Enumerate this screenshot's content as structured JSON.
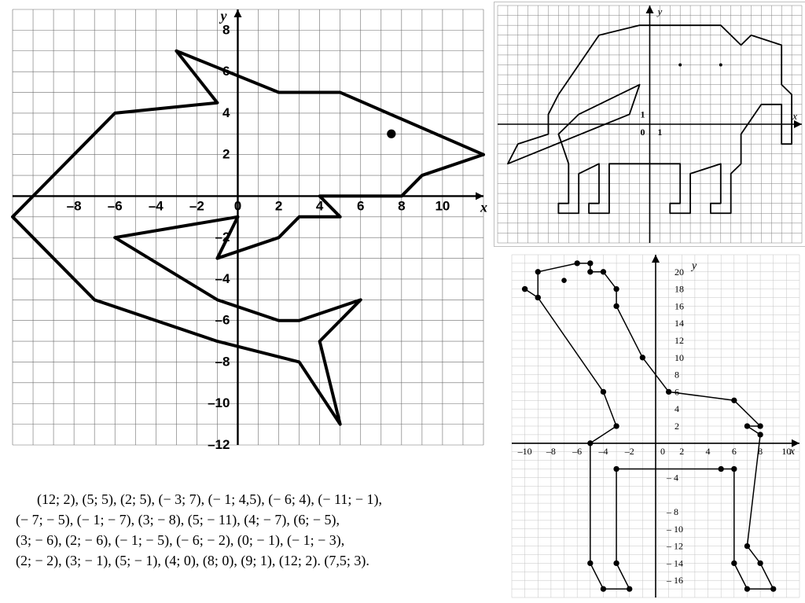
{
  "shark_chart": {
    "type": "coordinate-drawing",
    "background_color": "#ffffff",
    "grid_color": "#6b6b6b",
    "grid_width": 0.6,
    "axis_color": "#000000",
    "axis_width": 2.4,
    "shape_color": "#000000",
    "shape_width": 4,
    "label_color": "#000000",
    "label_fontsize": 17,
    "axis_label_fontsize": 18,
    "x_label": "x",
    "y_label": "y",
    "xlim": [
      -11,
      12
    ],
    "ylim": [
      -12,
      9
    ],
    "xticks": [
      -8,
      -6,
      -4,
      -2,
      0,
      2,
      4,
      6,
      8,
      10
    ],
    "yticks": [
      -12,
      -10,
      -8,
      -6,
      -4,
      -2,
      2,
      4,
      6,
      8
    ],
    "outline": [
      [
        12,
        2
      ],
      [
        5,
        5
      ],
      [
        2,
        5
      ],
      [
        -3,
        7
      ],
      [
        -1,
        4.5
      ],
      [
        -6,
        4
      ],
      [
        -11,
        -1
      ],
      [
        -7,
        -5
      ],
      [
        -1,
        -7
      ],
      [
        3,
        -8
      ],
      [
        5,
        -11
      ],
      [
        4,
        -7
      ],
      [
        6,
        -5
      ],
      [
        3,
        -6
      ],
      [
        2,
        -6
      ],
      [
        -1,
        -5
      ],
      [
        -6,
        -2
      ],
      [
        0,
        -1
      ],
      [
        -1,
        -3
      ],
      [
        2,
        -2
      ],
      [
        3,
        -1
      ],
      [
        5,
        -1
      ],
      [
        4,
        0
      ],
      [
        8,
        0
      ],
      [
        9,
        1
      ],
      [
        12,
        2
      ]
    ],
    "eye": [
      7.5,
      3
    ],
    "eye_radius": 0.18
  },
  "elephant_chart": {
    "type": "coordinate-drawing",
    "background_color": "#ffffff",
    "grid_color": "#808080",
    "grid_width": 0.5,
    "axis_color": "#000000",
    "axis_width": 1.6,
    "shape_color": "#000000",
    "shape_width": 1.8,
    "label_color": "#000000",
    "label_fontsize": 12,
    "axis_label_fontsize": 13,
    "x_label": "x",
    "y_label": "y",
    "xlim": [
      -15,
      15
    ],
    "ylim": [
      -12,
      12
    ],
    "xticks_labeled": [
      1
    ],
    "yticks_labeled": [
      1
    ],
    "origin_label": "0",
    "outline": [
      [
        -1,
        4
      ],
      [
        -2,
        1
      ],
      [
        -14,
        -4
      ],
      [
        -13,
        -2
      ],
      [
        -10,
        -1
      ],
      [
        -10,
        1
      ],
      [
        -9,
        3
      ],
      [
        -5,
        9
      ],
      [
        -1,
        10
      ],
      [
        7,
        10
      ],
      [
        9,
        8
      ],
      [
        10,
        9
      ],
      [
        13,
        8
      ],
      [
        13,
        4
      ],
      [
        14,
        3
      ],
      [
        14,
        -2
      ],
      [
        13,
        -2
      ],
      [
        13,
        2
      ],
      [
        11,
        2
      ],
      [
        9,
        -1
      ],
      [
        9,
        -4
      ],
      [
        8,
        -5
      ],
      [
        8,
        -9
      ],
      [
        6,
        -9
      ],
      [
        6,
        -8
      ],
      [
        7,
        -8
      ],
      [
        7,
        -4
      ],
      [
        4,
        -5
      ],
      [
        4,
        -9
      ],
      [
        2,
        -9
      ],
      [
        2,
        -8
      ],
      [
        3,
        -8
      ],
      [
        3,
        -4
      ],
      [
        -4,
        -4
      ],
      [
        -4,
        -9
      ],
      [
        -6,
        -9
      ],
      [
        -6,
        -8
      ],
      [
        -5,
        -8
      ],
      [
        -5,
        -4
      ],
      [
        -7,
        -5
      ],
      [
        -7,
        -9
      ],
      [
        -9,
        -9
      ],
      [
        -9,
        -8
      ],
      [
        -8,
        -8
      ],
      [
        -8,
        -4
      ],
      [
        -9,
        -1
      ],
      [
        -7,
        1
      ],
      [
        -1,
        4
      ]
    ],
    "eyes": [
      [
        3,
        6
      ],
      [
        7,
        6
      ]
    ],
    "eye_radius": 0.12
  },
  "giraffe_chart": {
    "type": "coordinate-drawing",
    "background_color": "#ffffff",
    "grid_color": "#c4c4c4",
    "grid_width": 0.5,
    "axis_color": "#000000",
    "axis_width": 1.6,
    "shape_color": "#000000",
    "shape_width": 1.5,
    "point_color": "#000000",
    "point_radius": 0.22,
    "label_color": "#000000",
    "label_fontsize": 12,
    "axis_label_fontsize": 14,
    "x_label": "x",
    "y_label": "y",
    "xlim": [
      -11,
      11
    ],
    "ylim": [
      -18,
      22
    ],
    "xticks": [
      -10,
      -8,
      -6,
      -4,
      -2,
      0,
      2,
      4,
      6,
      8,
      10
    ],
    "yticks_pos": [
      2,
      4,
      6,
      8,
      10,
      12,
      14,
      16,
      18,
      20
    ],
    "yticks_neg": [
      -4,
      -8,
      -10,
      -12,
      -14,
      -16
    ],
    "outline": [
      [
        -10,
        18
      ],
      [
        -9,
        17
      ],
      [
        -9,
        20
      ],
      [
        -6,
        21
      ],
      [
        -5,
        21
      ],
      [
        -5,
        20
      ],
      [
        -4,
        20
      ],
      [
        -3,
        18
      ],
      [
        -3,
        16
      ],
      [
        -1,
        10
      ],
      [
        1,
        6
      ],
      [
        6,
        5
      ],
      [
        8,
        2
      ],
      [
        7,
        2
      ],
      [
        8,
        1
      ],
      [
        7,
        -12
      ],
      [
        8,
        -14
      ],
      [
        9,
        -17
      ],
      [
        7,
        -17
      ],
      [
        6,
        -14
      ],
      [
        6,
        -3
      ],
      [
        5,
        -3
      ],
      [
        -3,
        -3
      ],
      [
        -3,
        -14
      ],
      [
        -2,
        -17
      ],
      [
        -4,
        -17
      ],
      [
        -5,
        -14
      ],
      [
        -5,
        0
      ],
      [
        -3,
        2
      ],
      [
        -4,
        6
      ],
      [
        -9,
        17
      ],
      [
        -10,
        18
      ]
    ],
    "eye": [
      -7,
      19
    ],
    "eye_radius": 0.25
  },
  "coordinates_text": "      (12; 2), (5; 5), (2; 5), (− 3; 7), (− 1; 4,5), (− 6; 4), (− 11; − 1),\n(− 7; − 5), (− 1; − 7), (3; − 8), (5; − 11), (4; − 7), (6; − 5),\n(3; − 6), (2; − 6), (− 1; − 5), (− 6; − 2), (0; − 1), (− 1; − 3),\n(2; − 2), (3; − 1), (5; − 1), (4; 0), (8; 0), (9; 1), (12; 2). (7,5; 3).",
  "coordinates_fontsize": 18
}
